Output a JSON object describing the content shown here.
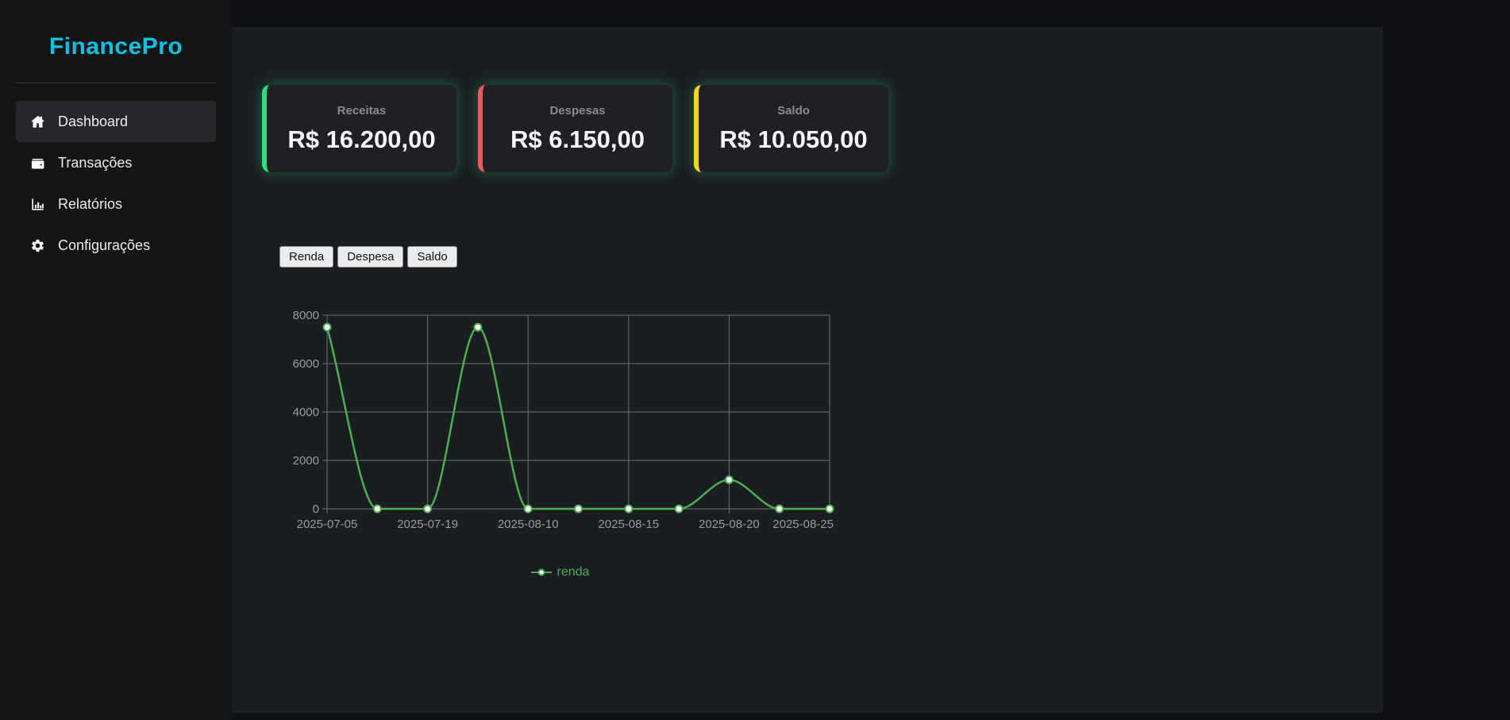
{
  "app": {
    "title": "FinancePro"
  },
  "colors": {
    "logo_cyan": "#00c3e6",
    "card_green": "#22e57c",
    "card_red": "#f4575a",
    "card_yellow": "#ffd60a",
    "glow_green": "rgba(34,226,130,0.30)",
    "line_green": "#4caf50",
    "panel_bg": "#1a1d22",
    "sidebar_bg": "#141414"
  },
  "sidebar": {
    "logo": "FinancePro",
    "items": [
      {
        "label": "Dashboard",
        "icon": "home-icon",
        "active": true
      },
      {
        "label": "Transações",
        "icon": "wallet-icon",
        "active": false
      },
      {
        "label": "Relatórios",
        "icon": "bar-chart-icon",
        "active": false
      },
      {
        "label": "Configurações",
        "icon": "gear-icon",
        "active": false
      }
    ]
  },
  "summary_cards": [
    {
      "label": "Receitas",
      "value": "R$ 16.200,00",
      "accent": "#22e57c"
    },
    {
      "label": "Despesas",
      "value": "R$ 6.150,00",
      "accent": "#f4575a"
    },
    {
      "label": "Saldo",
      "value": "R$ 10.050,00",
      "accent": "#ffd60a"
    }
  ],
  "series_buttons": [
    {
      "label": "Renda"
    },
    {
      "label": "Despesa"
    },
    {
      "label": "Saldo"
    }
  ],
  "chart_data": {
    "type": "line",
    "x_tick_labels": [
      "2025-07-05",
      "",
      "2025-07-19",
      "",
      "2025-08-10",
      "",
      "2025-08-15",
      "",
      "2025-08-20",
      "",
      "2025-08-25"
    ],
    "series": [
      {
        "name": "renda",
        "color": "#4caf50",
        "values": [
          7500,
          0,
          0,
          7500,
          0,
          0,
          0,
          0,
          1200,
          0,
          0
        ]
      }
    ],
    "y_ticks": [
      0,
      2000,
      4000,
      6000,
      8000
    ],
    "ylim": [
      0,
      8000
    ],
    "grid": true,
    "legend": {
      "label": "renda",
      "position": "bottom",
      "color": "#4caf50"
    },
    "title": "",
    "xlabel": "",
    "ylabel": ""
  }
}
